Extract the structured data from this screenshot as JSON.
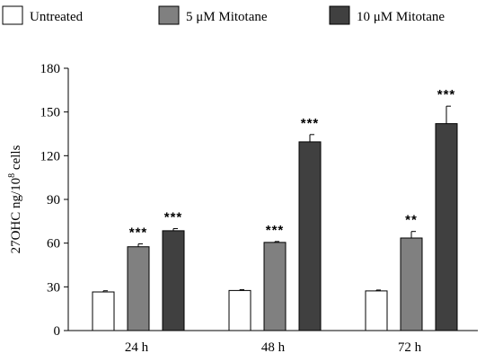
{
  "chart_data": {
    "type": "bar",
    "categories": [
      "24 h",
      "48 h",
      "72 h"
    ],
    "series": [
      {
        "name": "Untreated",
        "color": "#ffffff",
        "values": [
          26.5,
          27.5,
          27.2
        ],
        "errors": [
          0.8,
          0.6,
          0.6
        ],
        "labels": [
          "",
          "",
          ""
        ]
      },
      {
        "name": "5 μM Mitotane",
        "color": "#808080",
        "values": [
          57.5,
          60.5,
          63.5
        ],
        "errors": [
          2.0,
          0.6,
          4.5
        ],
        "labels": [
          "***",
          "***",
          "**"
        ]
      },
      {
        "name": "10 μM Mitotane",
        "color": "#404040",
        "values": [
          68.5,
          129.5,
          142.0
        ],
        "errors": [
          1.5,
          5.0,
          12.0
        ],
        "labels": [
          "***",
          "***",
          "***"
        ]
      }
    ],
    "ylabel_main": "27OHC ng/10",
    "ylabel_sup": "8",
    "ylabel_tail": " cells",
    "ylim": [
      0,
      180
    ],
    "yticks": [
      "0",
      "30",
      "60",
      "90",
      "120",
      "150",
      "180"
    ],
    "legend_position": "top",
    "grid": false
  }
}
